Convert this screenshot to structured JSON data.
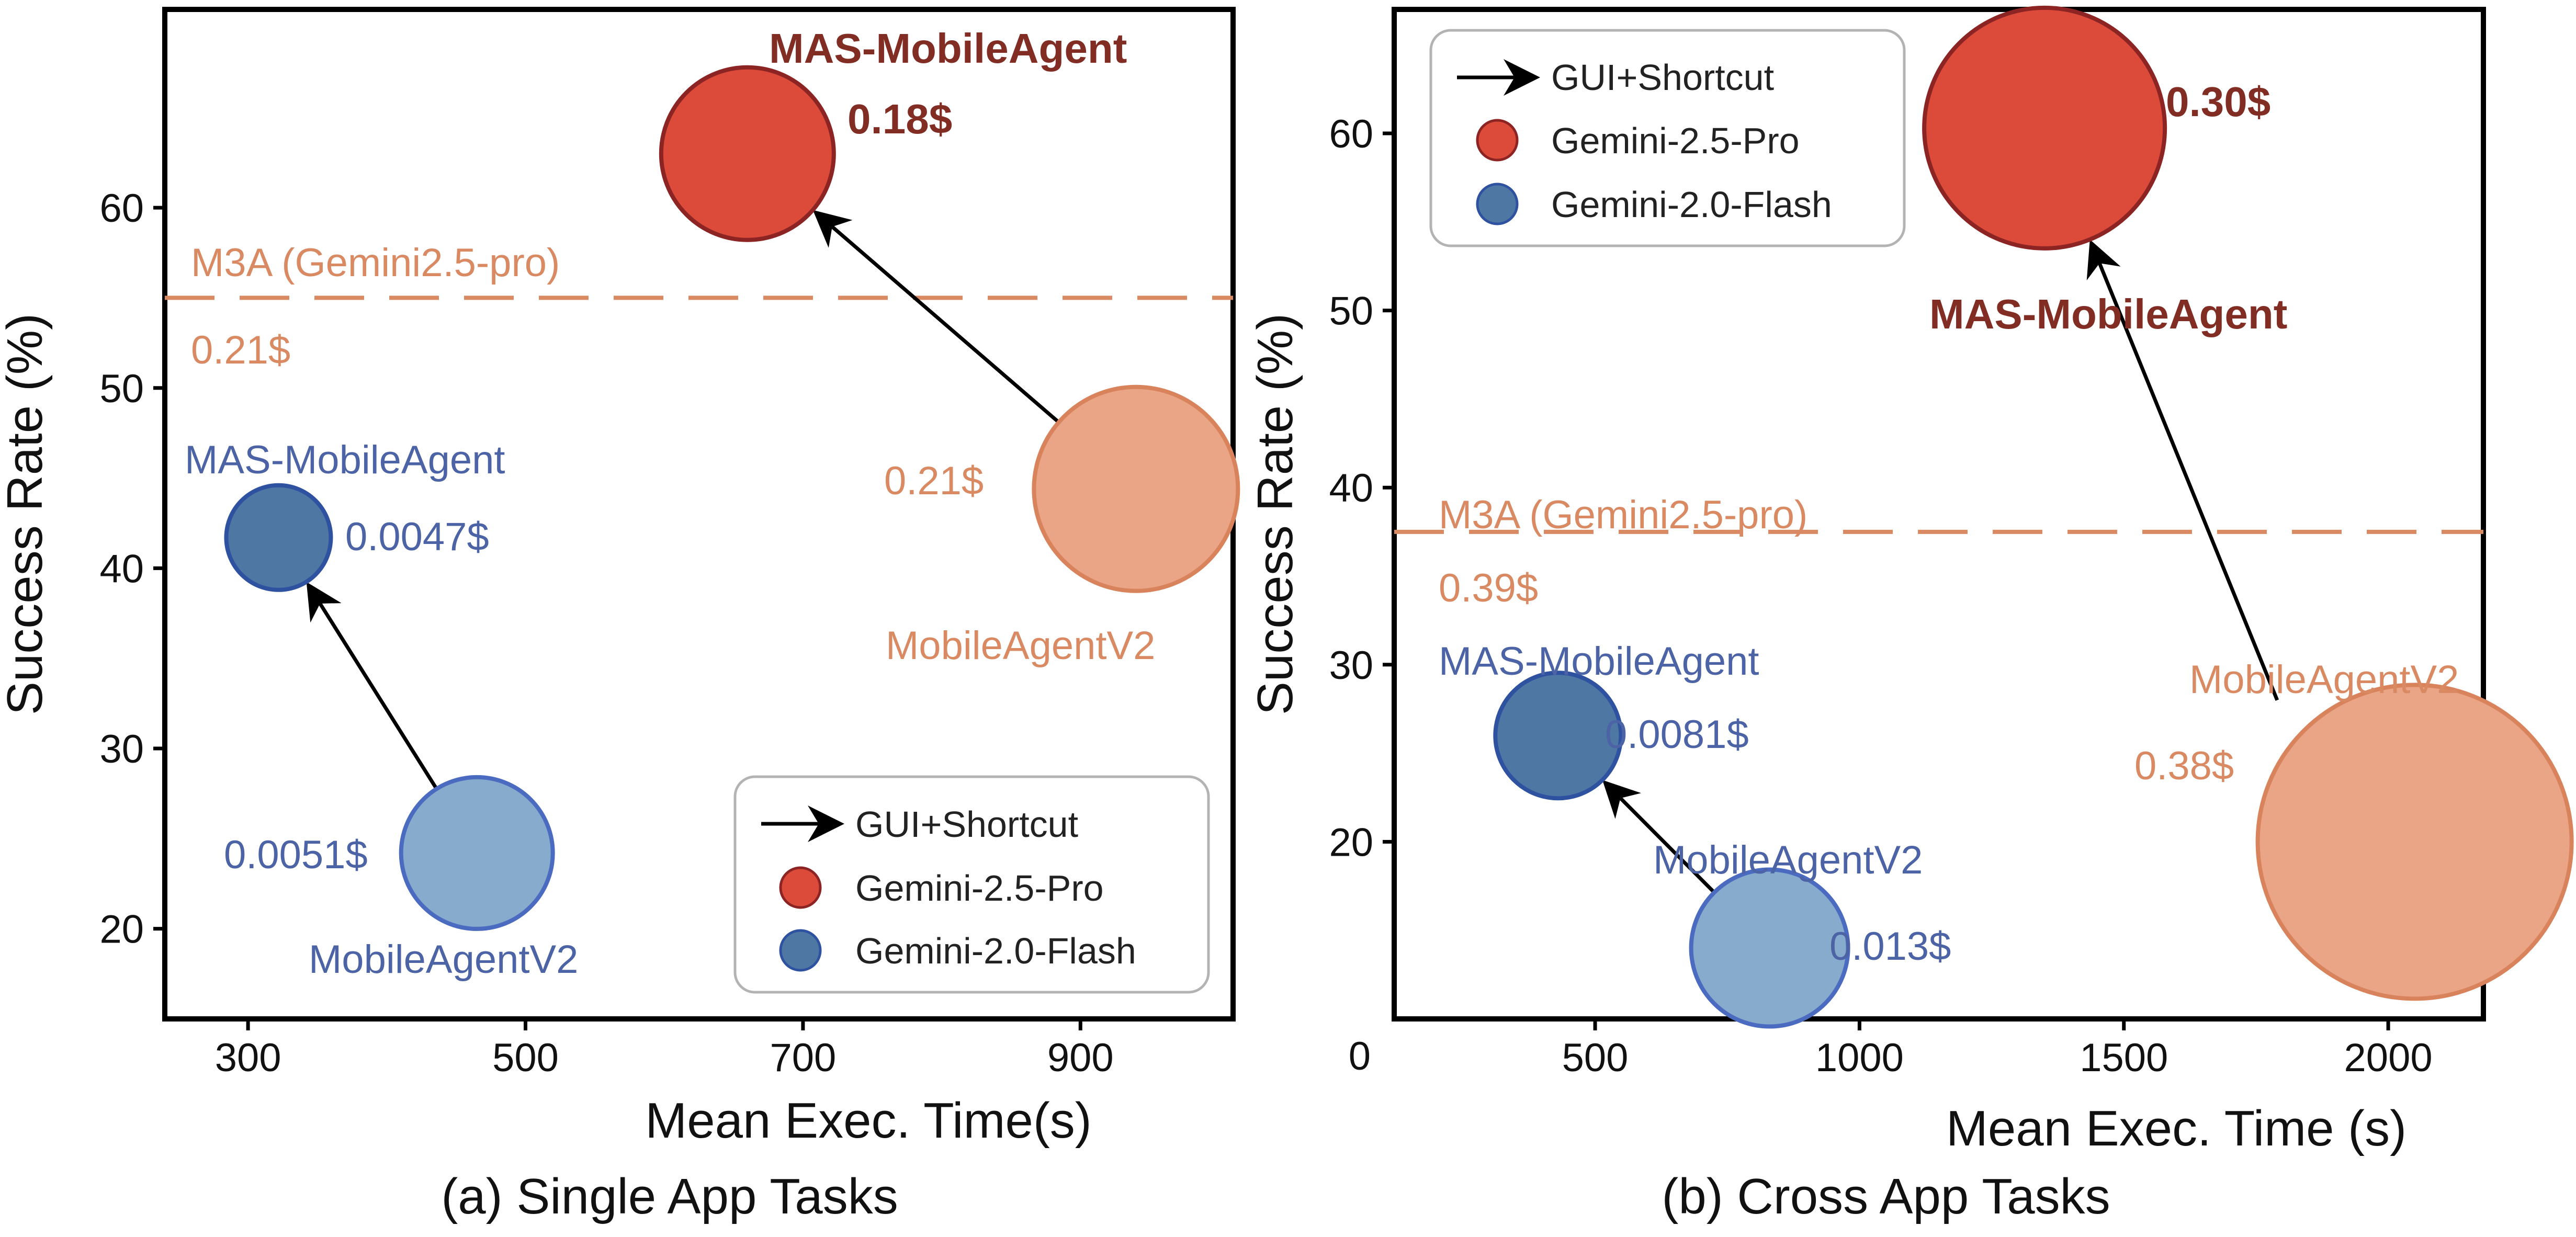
{
  "colors": {
    "orange": "#D98A63",
    "orange_fill": "#E9A586",
    "orange_edge": "#D9835C",
    "red_fill": "#DC4B3A",
    "red_edge": "#8B2423",
    "dark_red": "#822D24",
    "blue_text": "#4C64A6",
    "dark_blue_fill": "#4F77A4",
    "dark_blue_edge": "#2F52A0",
    "light_blue_fill": "#86ABCC",
    "light_blue_edge": "#4A6BC0",
    "axis": "#000000",
    "legend_border": "#B3B3B3"
  },
  "legend": {
    "arrow_label": "GUI+Shortcut",
    "pro_label": "Gemini-2.5-Pro",
    "flash_label": "Gemini-2.0-Flash"
  },
  "chart_data": [
    {
      "type": "scatter",
      "caption": "(a) Single App Tasks",
      "xlabel": "Mean Exec. Time(s)",
      "ylabel": "Success Rate (%)",
      "xlim": [
        240,
        1010
      ],
      "ylim": [
        15,
        71
      ],
      "xticks": [
        300,
        500,
        700,
        900
      ],
      "yticks": [
        20,
        30,
        40,
        50,
        60
      ],
      "legend_position": "bottom-right",
      "grid": false,
      "baseline": {
        "label": "M3A (Gemini2.5-pro)",
        "cost": "0.21$",
        "y": 55
      },
      "points": [
        {
          "name": "MobileAgentV2",
          "model": "Gemini-2.0-Flash",
          "x": 465,
          "y": 24.2,
          "cost": "0.0051$",
          "style": "light_blue"
        },
        {
          "name": "MAS-MobileAgent",
          "model": "Gemini-2.0-Flash",
          "x": 322,
          "y": 41.7,
          "cost": "0.0047$",
          "style": "dark_blue"
        },
        {
          "name": "MobileAgentV2",
          "model": "Gemini-2.5-Pro",
          "x": 940,
          "y": 44.4,
          "cost": "0.21$",
          "style": "orange"
        },
        {
          "name": "MAS-MobileAgent",
          "model": "Gemini-2.5-Pro",
          "x": 660,
          "y": 63,
          "cost": "0.18$",
          "style": "red"
        }
      ],
      "arrows": [
        {
          "from": [
            465,
            24.2
          ],
          "to": [
            322,
            41.7
          ]
        },
        {
          "from": [
            940,
            44.4
          ],
          "to": [
            660,
            63
          ]
        }
      ]
    },
    {
      "type": "scatter",
      "caption": "(b) Cross App Tasks",
      "xlabel": "Mean Exec. Time (s)",
      "ylabel": "Success Rate (%)",
      "xlim": [
        120,
        2180
      ],
      "ylim": [
        10,
        67
      ],
      "xticks": [
        500,
        1000,
        1500,
        2000
      ],
      "yticks": [
        20,
        30,
        40,
        50,
        60
      ],
      "extra_tick_label": "0",
      "legend_position": "top-left",
      "grid": false,
      "baseline": {
        "label": "M3A (Gemini2.5-pro)",
        "cost": "0.39$",
        "y": 37.5
      },
      "points": [
        {
          "name": "MobileAgentV2",
          "model": "Gemini-2.0-Flash",
          "x": 830,
          "y": 14,
          "cost": "0.013$",
          "style": "light_blue"
        },
        {
          "name": "MAS-MobileAgent",
          "model": "Gemini-2.0-Flash",
          "x": 430,
          "y": 26,
          "cost": "0.0081$",
          "style": "dark_blue"
        },
        {
          "name": "MobileAgentV2",
          "model": "Gemini-2.5-Pro",
          "x": 2050,
          "y": 20,
          "cost": "0.38$",
          "style": "orange"
        },
        {
          "name": "MAS-MobileAgent",
          "model": "Gemini-2.5-Pro",
          "x": 1350,
          "y": 60.3,
          "cost": "0.30$",
          "style": "red"
        }
      ],
      "arrows": [
        {
          "from": [
            830,
            14
          ],
          "to": [
            430,
            26
          ]
        },
        {
          "from": [
            1790,
            28
          ],
          "to": [
            1350,
            60.3
          ]
        }
      ]
    }
  ]
}
